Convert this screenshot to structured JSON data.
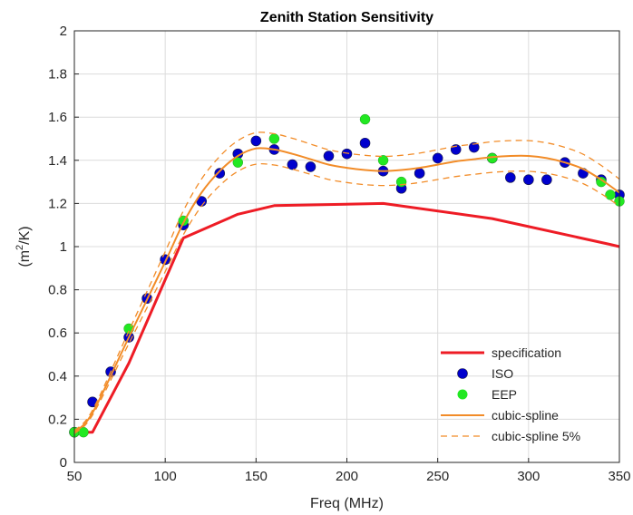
{
  "chart_data": {
    "type": "scatter",
    "title": "Zenith Station Sensitivity",
    "xlabel": "Freq (MHz)",
    "ylabel": "(m²/K)",
    "ylabel_base": "(m",
    "ylabel_sup": "2",
    "ylabel_tail": "/K)",
    "xlim": [
      50,
      350
    ],
    "ylim": [
      0,
      2
    ],
    "x_ticks": [
      50,
      100,
      150,
      200,
      250,
      300,
      350
    ],
    "y_ticks": [
      0,
      0.2,
      0.4,
      0.6,
      0.8,
      1,
      1.2,
      1.4,
      1.6,
      1.8,
      2
    ],
    "x_tick_labels": [
      "50",
      "100",
      "150",
      "200",
      "250",
      "300",
      "350"
    ],
    "y_tick_labels": [
      "0",
      "0.2",
      "0.4",
      "0.6",
      "0.8",
      "1",
      "1.2",
      "1.4",
      "1.6",
      "1.8",
      "2"
    ],
    "grid": true,
    "legend_position": "bottom-right",
    "series": [
      {
        "name": "specification",
        "kind": "line",
        "color": "#ee1c25",
        "x": [
          50,
          60,
          80,
          110,
          140,
          160,
          220,
          280,
          345,
          350
        ],
        "y": [
          0.14,
          0.14,
          0.46,
          1.04,
          1.15,
          1.19,
          1.2,
          1.13,
          1.01,
          1.0
        ]
      },
      {
        "name": "ISO",
        "kind": "marker",
        "color": "#0000cd",
        "x": [
          50,
          60,
          70,
          80,
          90,
          100,
          110,
          120,
          130,
          140,
          150,
          160,
          170,
          180,
          190,
          200,
          210,
          220,
          230,
          240,
          250,
          260,
          270,
          280,
          290,
          300,
          310,
          320,
          330,
          340,
          350
        ],
        "y": [
          0.14,
          0.28,
          0.42,
          0.58,
          0.76,
          0.94,
          1.1,
          1.21,
          1.34,
          1.43,
          1.49,
          1.45,
          1.38,
          1.37,
          1.42,
          1.43,
          1.48,
          1.35,
          1.27,
          1.34,
          1.41,
          1.45,
          1.46,
          1.41,
          1.32,
          1.31,
          1.31,
          1.39,
          1.34,
          1.31,
          1.24
        ]
      },
      {
        "name": "EEP",
        "kind": "marker",
        "color": "#22e822",
        "x": [
          50,
          55,
          80,
          110,
          140,
          160,
          210,
          220,
          230,
          280,
          340,
          345,
          350
        ],
        "y": [
          0.14,
          0.14,
          0.62,
          1.12,
          1.39,
          1.5,
          1.59,
          1.4,
          1.3,
          1.41,
          1.3,
          1.24,
          1.21
        ]
      },
      {
        "name": "cubic-spline",
        "kind": "line",
        "color": "#f28c28",
        "x": [
          50,
          60,
          80,
          100,
          110,
          120,
          130,
          140,
          150,
          160,
          170,
          180,
          190,
          200,
          210,
          220,
          230,
          240,
          250,
          260,
          270,
          280,
          290,
          300,
          310,
          320,
          330,
          340,
          350
        ],
        "y": [
          0.14,
          0.23,
          0.58,
          0.93,
          1.11,
          1.25,
          1.35,
          1.42,
          1.455,
          1.45,
          1.43,
          1.405,
          1.38,
          1.365,
          1.355,
          1.35,
          1.355,
          1.365,
          1.38,
          1.395,
          1.405,
          1.415,
          1.42,
          1.42,
          1.41,
          1.39,
          1.36,
          1.31,
          1.25
        ]
      },
      {
        "name": "cubic-spline 5%",
        "kind": "dashed",
        "color": "#f28c28",
        "bands": [
          {
            "x": [
              50,
              60,
              80,
              100,
              110,
              120,
              130,
              140,
              150,
              160,
              170,
              180,
              190,
              200,
              210,
              220,
              230,
              240,
              250,
              260,
              270,
              280,
              290,
              300,
              310,
              320,
              330,
              340,
              350
            ],
            "y": [
              0.147,
              0.242,
              0.609,
              0.977,
              1.166,
              1.313,
              1.418,
              1.491,
              1.528,
              1.523,
              1.502,
              1.475,
              1.449,
              1.433,
              1.423,
              1.418,
              1.423,
              1.433,
              1.449,
              1.465,
              1.475,
              1.486,
              1.491,
              1.491,
              1.481,
              1.46,
              1.428,
              1.376,
              1.313
            ]
          },
          {
            "x": [
              50,
              60,
              80,
              100,
              110,
              120,
              130,
              140,
              150,
              160,
              170,
              180,
              190,
              200,
              210,
              220,
              230,
              240,
              250,
              260,
              270,
              280,
              290,
              300,
              310,
              320,
              330,
              340,
              350
            ],
            "y": [
              0.133,
              0.219,
              0.551,
              0.884,
              1.055,
              1.188,
              1.283,
              1.349,
              1.382,
              1.378,
              1.359,
              1.335,
              1.311,
              1.297,
              1.287,
              1.283,
              1.287,
              1.297,
              1.311,
              1.325,
              1.335,
              1.344,
              1.349,
              1.349,
              1.34,
              1.321,
              1.292,
              1.245,
              1.188
            ]
          }
        ]
      }
    ]
  }
}
